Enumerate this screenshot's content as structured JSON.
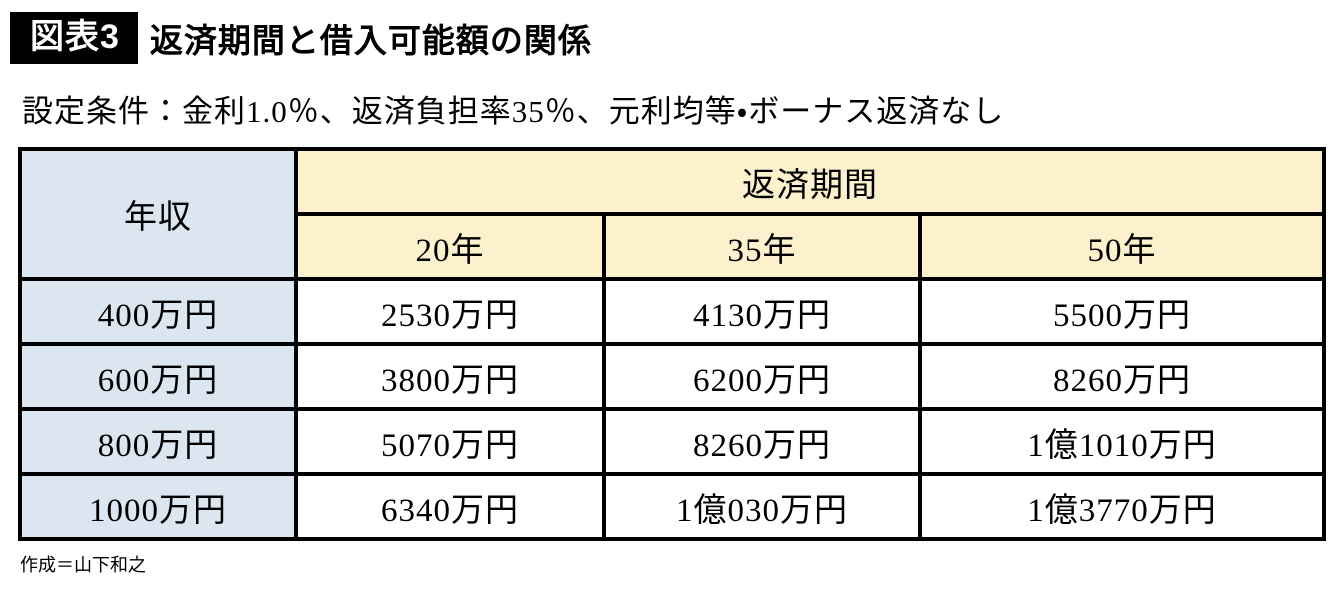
{
  "figure": {
    "badge": "図表3",
    "title": "返済期間と借入可能額の関係"
  },
  "chart_data": {
    "type": "table",
    "title": "返済期間と借入可能額の関係",
    "subtitle": "設定条件：金利1.0％、返済負担率35％、元利均等・ボーナス返済なし",
    "row_axis_label": "年収",
    "column_group_label": "返済期間",
    "columns": [
      "20年",
      "35年",
      "50年"
    ],
    "row_labels": [
      "400万円",
      "600万円",
      "800万円",
      "1000万円"
    ],
    "cells": [
      [
        "2530万円",
        "4130万円",
        "5500万円"
      ],
      [
        "3800万円",
        "6200万円",
        "8260万円"
      ],
      [
        "5070万円",
        "8260万円",
        "1億1010万円"
      ],
      [
        "6340万円",
        "1億030万円",
        "1億3770万円"
      ]
    ],
    "values_unit": "万円",
    "numeric_values_man_yen": [
      [
        2530,
        4130,
        5500
      ],
      [
        3800,
        6200,
        8260
      ],
      [
        5070,
        8260,
        11010
      ],
      [
        6340,
        10030,
        13770
      ]
    ],
    "legend_position": "none",
    "grid": true
  },
  "credit": "作成＝山下和之",
  "colors": {
    "income_header_bg": "#dce6f1",
    "period_header_bg": "#fdf0cd",
    "cell_bg": "#ffffff",
    "border": "#000000",
    "badge_bg": "#000000",
    "badge_text": "#ffffff"
  }
}
